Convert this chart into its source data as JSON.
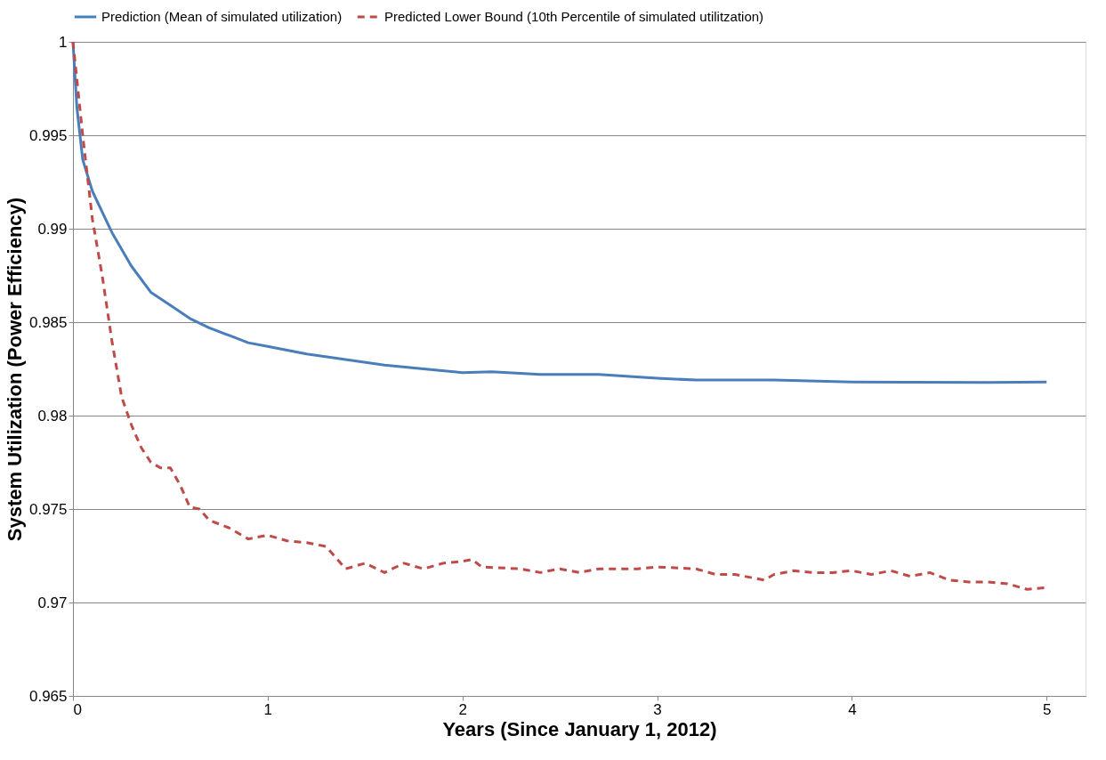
{
  "chart_data": {
    "type": "line",
    "xlabel": "Years (Since January 1, 2012)",
    "ylabel": "System Utilization (Power Efficiency)",
    "xlim": [
      0,
      5.2
    ],
    "xticks": [
      0,
      1,
      2,
      3,
      4,
      5
    ],
    "ylim": [
      0.965,
      1
    ],
    "yticks": [
      0.965,
      0.97,
      0.975,
      0.98,
      0.985,
      0.99,
      0.995,
      1
    ],
    "grid": "y",
    "legend": "top",
    "marker": "none",
    "series": [
      {
        "name": "Prediction (Mean of simulated utilization)",
        "color": "#4a7ebb",
        "line_style": "solid",
        "x": [
          0,
          0.02,
          0.05,
          0.1,
          0.2,
          0.3,
          0.4,
          0.5,
          0.6,
          0.7,
          0.8,
          0.9,
          1.0,
          1.2,
          1.4,
          1.6,
          1.8,
          2.0,
          2.15,
          2.4,
          2.7,
          3.0,
          3.2,
          3.6,
          4.0,
          4.3,
          4.7,
          5.0
        ],
        "values": [
          1.0,
          0.9965,
          0.9937,
          0.992,
          0.9898,
          0.988,
          0.9866,
          0.9859,
          0.9852,
          0.9847,
          0.9843,
          0.9839,
          0.9837,
          0.9833,
          0.983,
          0.9827,
          0.9825,
          0.9823,
          0.98235,
          0.9822,
          0.9822,
          0.982,
          0.9819,
          0.9819,
          0.9818,
          0.98178,
          0.98177,
          0.9818
        ]
      },
      {
        "name": "Predicted Lower Bound (10th Percentile of simulated utilitzation)",
        "color": "#be4b48",
        "line_style": "dashed",
        "x": [
          0,
          0.05,
          0.1,
          0.15,
          0.2,
          0.25,
          0.3,
          0.35,
          0.4,
          0.45,
          0.5,
          0.55,
          0.6,
          0.65,
          0.7,
          0.8,
          0.9,
          1.0,
          1.1,
          1.2,
          1.3,
          1.4,
          1.5,
          1.6,
          1.7,
          1.8,
          1.9,
          2.0,
          2.05,
          2.1,
          2.3,
          2.4,
          2.5,
          2.6,
          2.7,
          2.9,
          3.0,
          3.2,
          3.3,
          3.4,
          3.5,
          3.55,
          3.6,
          3.7,
          3.8,
          3.9,
          4.0,
          4.1,
          4.2,
          4.3,
          4.4,
          4.5,
          4.6,
          4.7,
          4.8,
          4.9,
          5.0
        ],
        "values": [
          1.0,
          0.995,
          0.9905,
          0.9875,
          0.984,
          0.981,
          0.9795,
          0.9783,
          0.9775,
          0.9772,
          0.9772,
          0.9763,
          0.9751,
          0.975,
          0.9744,
          0.974,
          0.9734,
          0.9736,
          0.9733,
          0.9732,
          0.973,
          0.9718,
          0.9721,
          0.9716,
          0.9721,
          0.9718,
          0.9721,
          0.9722,
          0.9723,
          0.9719,
          0.9718,
          0.9716,
          0.9718,
          0.9716,
          0.9718,
          0.9718,
          0.9719,
          0.9718,
          0.9715,
          0.9715,
          0.9713,
          0.9712,
          0.9715,
          0.9717,
          0.9716,
          0.9716,
          0.9717,
          0.9715,
          0.9717,
          0.9714,
          0.9716,
          0.9712,
          0.9711,
          0.9711,
          0.971,
          0.9707,
          0.9708
        ]
      }
    ]
  }
}
